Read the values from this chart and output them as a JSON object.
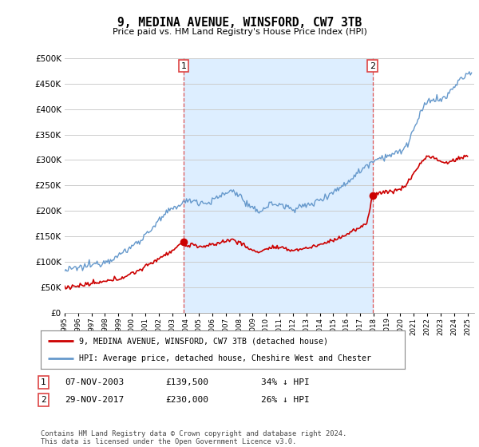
{
  "title": "9, MEDINA AVENUE, WINSFORD, CW7 3TB",
  "subtitle": "Price paid vs. HM Land Registry's House Price Index (HPI)",
  "hpi_label": "HPI: Average price, detached house, Cheshire West and Chester",
  "price_label": "9, MEDINA AVENUE, WINSFORD, CW7 3TB (detached house)",
  "hpi_color": "#6699cc",
  "price_color": "#cc0000",
  "annotation1_date": "07-NOV-2003",
  "annotation1_price": "£139,500",
  "annotation1_hpi": "34% ↓ HPI",
  "annotation2_date": "29-NOV-2017",
  "annotation2_price": "£230,000",
  "annotation2_hpi": "26% ↓ HPI",
  "ylim": [
    0,
    500000
  ],
  "yticks": [
    0,
    50000,
    100000,
    150000,
    200000,
    250000,
    300000,
    350000,
    400000,
    450000,
    500000
  ],
  "xlim_start": 1995.0,
  "xlim_end": 2025.5,
  "footer": "Contains HM Land Registry data © Crown copyright and database right 2024.\nThis data is licensed under the Open Government Licence v3.0.",
  "plot_bg_color": "#ffffff",
  "fill_bg_color": "#ddeeff",
  "grid_color": "#cccccc",
  "vline_color": "#dd4444",
  "vline1_x": 2003.85,
  "vline2_x": 2017.92,
  "sale1_value": 139500,
  "sale2_value": 230000
}
